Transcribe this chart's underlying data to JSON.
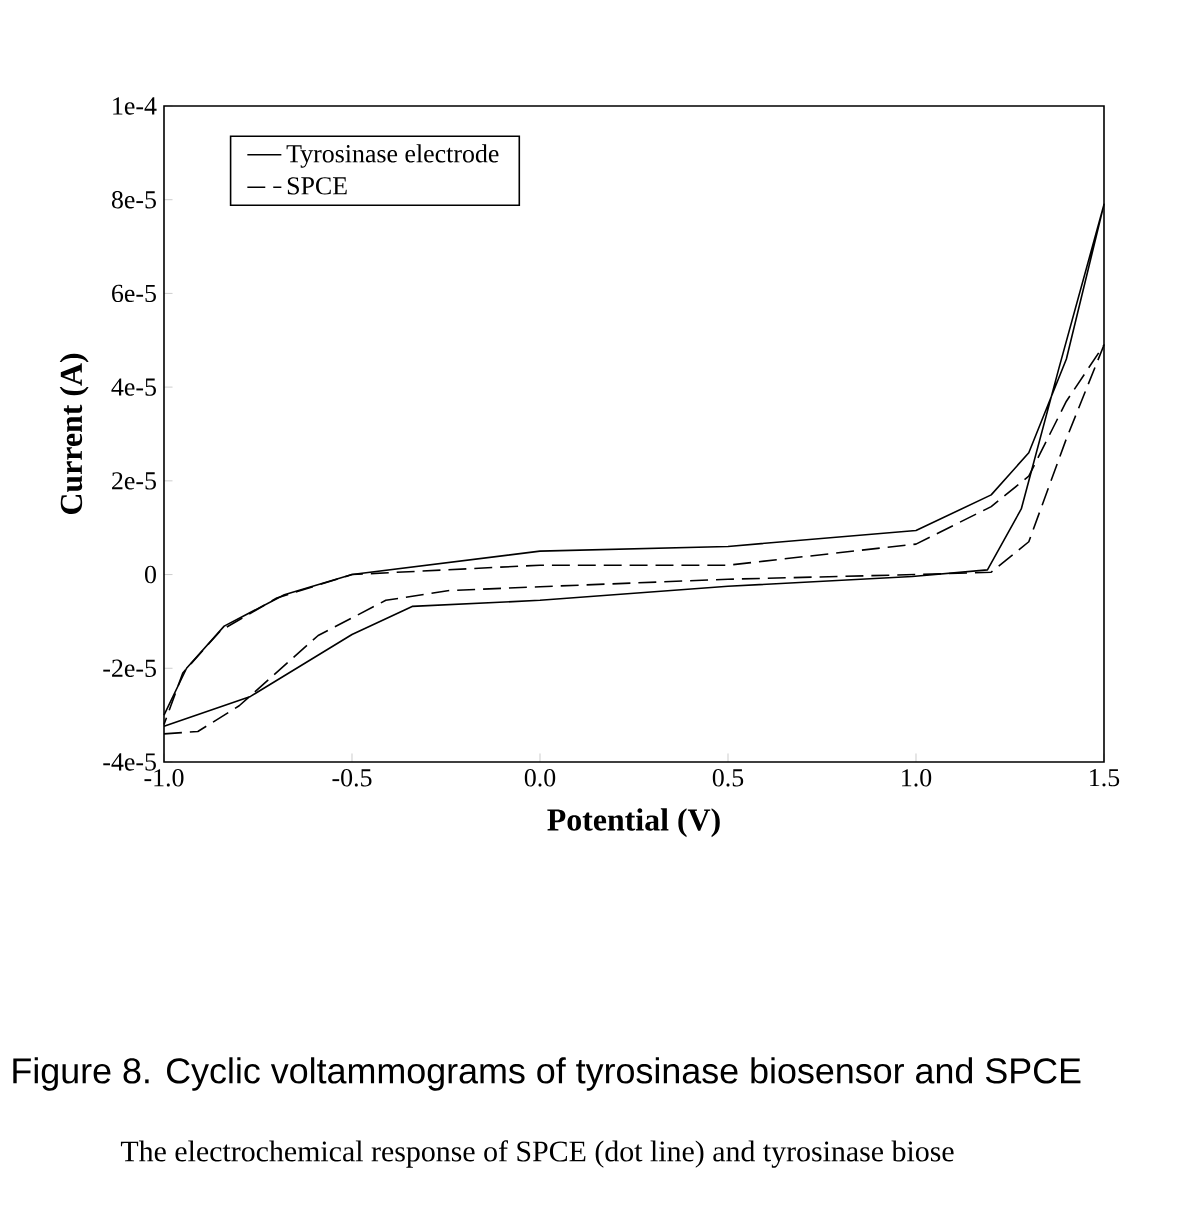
{
  "chart_data": {
    "type": "line",
    "xlabel": "Potential (V)",
    "ylabel": "Current (A)",
    "xlim": [
      -1.0,
      1.5
    ],
    "xticks": [
      {
        "value": -1.0,
        "label": "-1.0"
      },
      {
        "value": -0.5,
        "label": "-0.5"
      },
      {
        "value": 0.0,
        "label": "0.0"
      },
      {
        "value": 0.5,
        "label": "0.5"
      },
      {
        "value": 1.0,
        "label": "1.0"
      },
      {
        "value": 1.5,
        "label": "1.5"
      }
    ],
    "ylim": [
      -4e-05,
      0.0001
    ],
    "yticks": [
      {
        "value": -4e-05,
        "label": "-4e-5"
      },
      {
        "value": -2e-05,
        "label": "-2e-5"
      },
      {
        "value": 0,
        "label": "0"
      },
      {
        "value": 2e-05,
        "label": "2e-5"
      },
      {
        "value": 4e-05,
        "label": "4e-5"
      },
      {
        "value": 6e-05,
        "label": "6e-5"
      },
      {
        "value": 8e-05,
        "label": "8e-5"
      },
      {
        "value": 0.0001,
        "label": "1e-4"
      }
    ],
    "legend": "top left",
    "grid": false,
    "series": [
      {
        "name": "Tyrosinase electrode",
        "color": "#000000",
        "line_style": "solid",
        "x": [
          -1.0,
          -0.77,
          -0.5,
          -0.34,
          0.0,
          0.5,
          0.99,
          1.19,
          1.28,
          1.38,
          1.5,
          1.4,
          1.3,
          1.2,
          1.0,
          0.5,
          0.0,
          -0.5,
          -0.68,
          -0.84,
          -0.94,
          -1.0
        ],
        "values": [
          -3.24e-05,
          -2.6e-05,
          -1.28e-05,
          -6.8e-06,
          -5.5e-06,
          -2.5e-06,
          -4e-07,
          1e-06,
          1.4e-05,
          4.4e-05,
          7.9e-05,
          4.6e-05,
          2.6e-05,
          1.7e-05,
          9.4e-06,
          6e-06,
          5e-06,
          0,
          -4.3e-06,
          -1.1e-05,
          -2e-05,
          -3e-05
        ]
      },
      {
        "name": "SPCE",
        "color": "#000000",
        "line_style": "dashed",
        "x": [
          -1.0,
          -0.91,
          -0.8,
          -0.59,
          -0.41,
          -0.24,
          0.0,
          0.5,
          1.0,
          1.2,
          1.3,
          1.4,
          1.5,
          1.4,
          1.3,
          1.2,
          1.0,
          0.5,
          0.0,
          -0.5,
          -0.7,
          -0.85,
          -0.95,
          -1.0
        ],
        "values": [
          -3.4e-05,
          -3.35e-05,
          -2.8e-05,
          -1.3e-05,
          -5.5e-06,
          -3.4e-06,
          -2.6e-06,
          -1e-06,
          0,
          5e-07,
          7e-06,
          2.9e-05,
          4.9e-05,
          3.7e-05,
          2.1e-05,
          1.45e-05,
          6.5e-06,
          2e-06,
          2e-06,
          0,
          -5e-06,
          -1.2e-05,
          -2.1e-05,
          -3.2e-05
        ]
      }
    ],
    "annotations": [
      "Figure 8. Cyclic voltammograms of tyrosinase biosensor and SPCE",
      "The electrochemical response of SPCE (dot line) and tyrosinase biose"
    ]
  }
}
